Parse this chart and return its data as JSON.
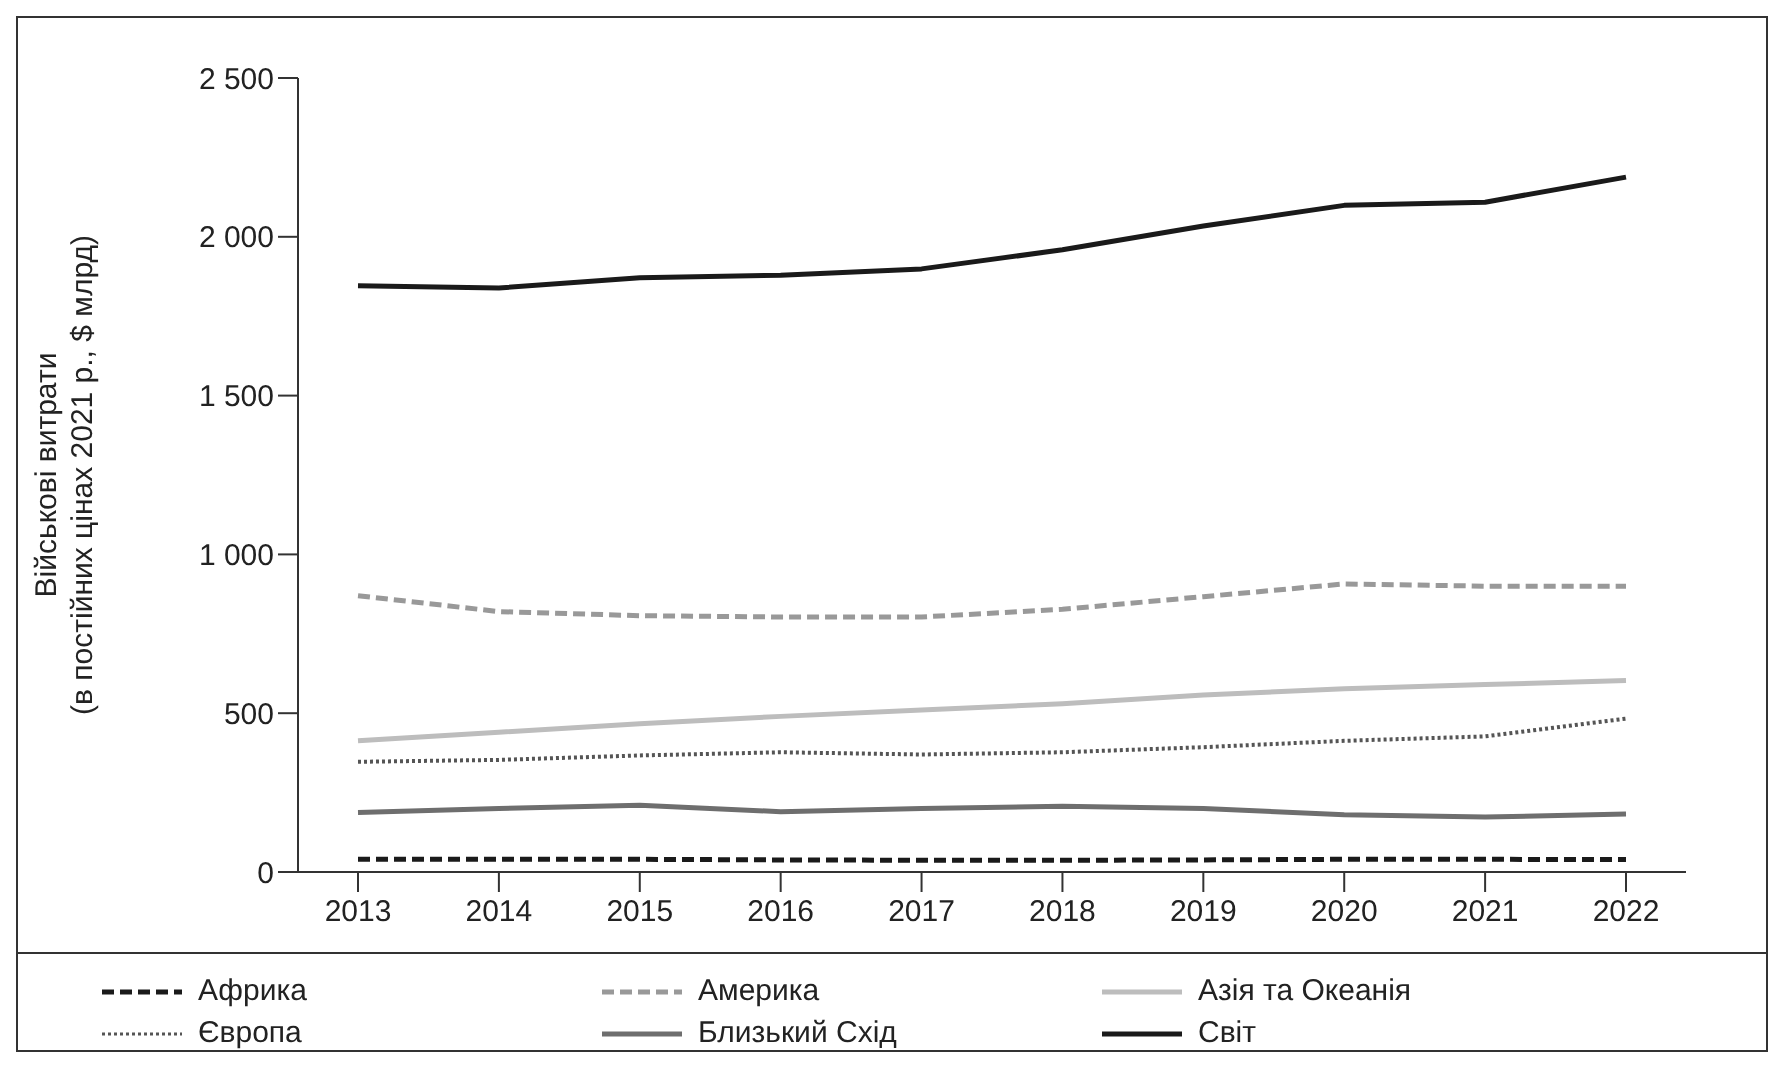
{
  "chart_data": {
    "type": "line",
    "ylabel": "Військові витрати\n(в постійних цінах 2021 р., $ млрд)",
    "categories": [
      "2013",
      "2014",
      "2015",
      "2016",
      "2017",
      "2018",
      "2019",
      "2020",
      "2021",
      "2022"
    ],
    "series": [
      {
        "name": "Африка",
        "color": "#1a1a1a",
        "line_style": "dashed",
        "values": [
          40,
          40,
          40,
          38,
          37,
          37,
          38,
          40,
          40,
          39
        ]
      },
      {
        "name": "Америка",
        "color": "#999999",
        "line_style": "dashed",
        "values": [
          870,
          820,
          807,
          803,
          803,
          827,
          867,
          907,
          900,
          900
        ]
      },
      {
        "name": "Азія та Океанія",
        "color": "#bdbdbd",
        "line_style": "solid",
        "values": [
          413,
          440,
          467,
          490,
          510,
          530,
          557,
          577,
          590,
          603
        ]
      },
      {
        "name": "Європа",
        "color": "#555555",
        "line_style": "dotted",
        "values": [
          347,
          353,
          367,
          377,
          370,
          377,
          393,
          413,
          427,
          483
        ]
      },
      {
        "name": "Близький Схід",
        "color": "#6e6e6e",
        "line_style": "solid",
        "values": [
          187,
          200,
          210,
          190,
          200,
          207,
          200,
          180,
          173,
          183
        ]
      },
      {
        "name": "Світ",
        "color": "#1a1a1a",
        "line_style": "solid",
        "values": [
          1846,
          1839,
          1871,
          1879,
          1899,
          1959,
          2034,
          2099,
          2109,
          2188
        ]
      }
    ],
    "ylim": [
      0,
      2500
    ],
    "yticks": [
      0,
      500,
      {
        "value": 1000,
        "label": "1 000"
      },
      {
        "value": 1500,
        "label": "1 500"
      },
      {
        "value": 2000,
        "label": "2 000"
      },
      {
        "value": 2500,
        "label": "2 500"
      }
    ],
    "grid": false,
    "legend": "bottom",
    "marker": "none"
  }
}
